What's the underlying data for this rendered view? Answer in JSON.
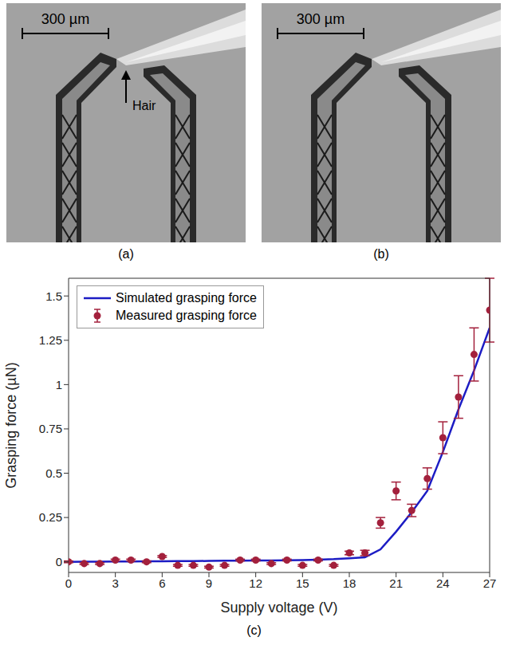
{
  "panels": [
    {
      "label": "(a)",
      "scale_bar": "300 µm",
      "annotation": "Hair"
    },
    {
      "label": "(b)",
      "scale_bar": "300 µm"
    }
  ],
  "chart_data": {
    "type": "scatter_line",
    "panel_label": "(c)",
    "x_label": "Supply voltage (V)",
    "y_label": "Grasping force (µN)",
    "x": [
      0,
      1,
      2,
      3,
      4,
      5,
      6,
      7,
      8,
      9,
      10,
      11,
      12,
      13,
      14,
      15,
      16,
      17,
      18,
      19,
      20,
      21,
      22,
      23,
      24,
      25,
      26,
      27
    ],
    "series": [
      {
        "name": "Simulated grasping force",
        "type": "line",
        "color": "#1c1cc4",
        "line_style": "solid",
        "values": [
          0,
          0.001,
          0.001,
          0.002,
          0.002,
          0.003,
          0.003,
          0.004,
          0.004,
          0.005,
          0.006,
          0.006,
          0.007,
          0.008,
          0.009,
          0.01,
          0.012,
          0.015,
          0.02,
          0.025,
          0.07,
          0.17,
          0.28,
          0.4,
          0.62,
          0.86,
          1.08,
          1.32
        ]
      },
      {
        "name": "Measured grasping force",
        "type": "scatter",
        "color": "#a3203c",
        "marker": "circle",
        "values": [
          0,
          -0.01,
          -0.01,
          0.01,
          0.01,
          0,
          0.03,
          -0.02,
          -0.02,
          -0.03,
          -0.02,
          0.01,
          0.01,
          -0.01,
          0.01,
          -0.02,
          0.01,
          -0.02,
          0.05,
          0.05,
          0.22,
          0.4,
          0.29,
          0.47,
          0.7,
          0.93,
          1.17,
          1.42
        ],
        "errors": [
          0.005,
          0.005,
          0.005,
          0.005,
          0.005,
          0.005,
          0.005,
          0.005,
          0.005,
          0.005,
          0.005,
          0.005,
          0.005,
          0.005,
          0.005,
          0.005,
          0.005,
          0.005,
          0.01,
          0.015,
          0.03,
          0.05,
          0.035,
          0.06,
          0.09,
          0.12,
          0.15,
          0.18
        ]
      }
    ],
    "xlim": [
      0,
      27
    ],
    "xticks": [
      0,
      3,
      6,
      9,
      12,
      15,
      18,
      21,
      24,
      27
    ],
    "ylim": [
      -0.06,
      1.6
    ],
    "yticks": [
      0,
      0.25,
      0.5,
      0.75,
      1,
      1.25,
      1.5
    ],
    "legend": "upper left",
    "grid": false
  }
}
